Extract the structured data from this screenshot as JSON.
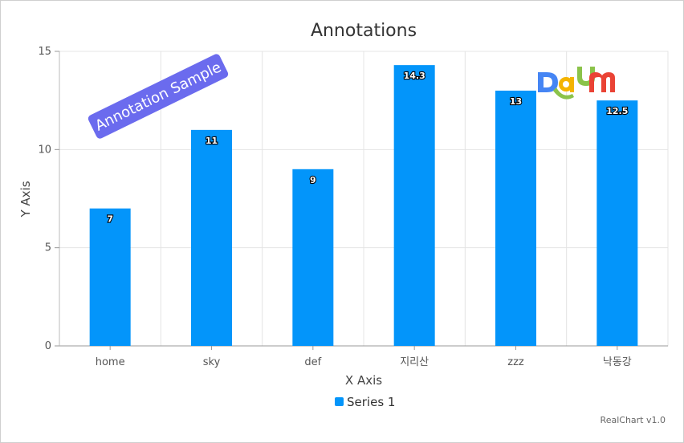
{
  "chart_data": {
    "type": "bar",
    "title": "Annotations",
    "xlabel": "X Axis",
    "ylabel": "Y Axis",
    "categories": [
      "home",
      "sky",
      "def",
      "지리산",
      "zzz",
      "낙동강"
    ],
    "series": [
      {
        "name": "Series 1",
        "values": [
          7,
          11,
          9,
          14.3,
          13,
          12.5
        ],
        "color": "#0395fa"
      }
    ],
    "ylim": [
      0,
      15
    ],
    "yticks": [
      0,
      5,
      10,
      15
    ],
    "grid": true,
    "legend_position": "bottom",
    "annotations": [
      {
        "type": "text",
        "text": "Annotation Sample",
        "background": "#6b6bee"
      },
      {
        "type": "image",
        "text": "DAUM",
        "colors": [
          "#4585f4",
          "#f4b400",
          "#8bc34a",
          "#ea4335"
        ]
      }
    ]
  },
  "credits": "RealChart v1.0"
}
